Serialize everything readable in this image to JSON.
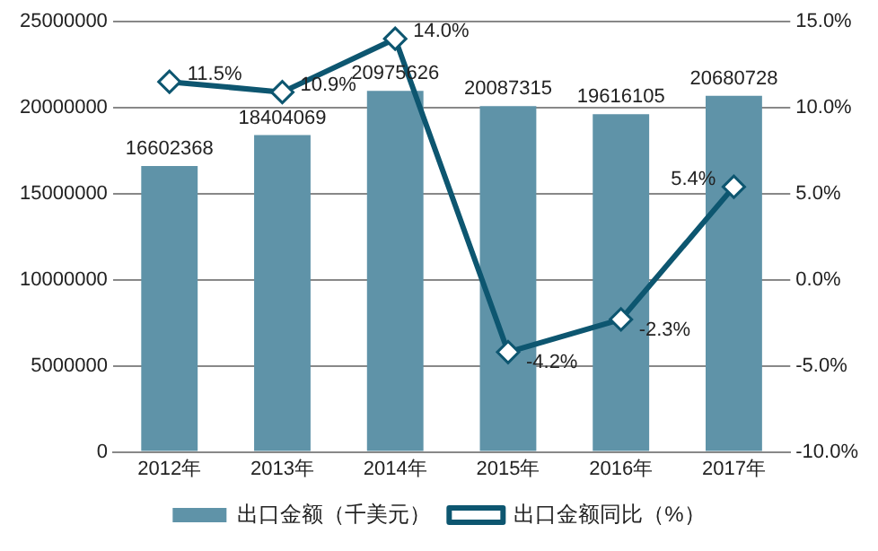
{
  "chart_data": {
    "type": "bar",
    "categories": [
      "2012年",
      "2013年",
      "2014年",
      "2015年",
      "2016年",
      "2017年"
    ],
    "series": [
      {
        "name": "出口金额（千美元）",
        "color": "#5f93a8",
        "values": [
          16602368,
          18404069,
          20975626,
          20087315,
          19616105,
          20680728
        ],
        "value_labels": [
          "16602368",
          "18404069",
          "20975626",
          "20087315",
          "19616105",
          "20680728"
        ]
      },
      {
        "name": "出口金额同比（%）",
        "type": "line",
        "axis": "y2",
        "color": "#0d5670",
        "marker": "diamond",
        "values": [
          11.5,
          10.9,
          14.0,
          -4.2,
          -2.3,
          5.4
        ],
        "value_labels": [
          "11.5%",
          "10.9%",
          "14.0%",
          "-4.2%",
          "-2.3%",
          "5.4%"
        ]
      }
    ],
    "ylim": [
      0,
      25000000
    ],
    "yticks": [
      0,
      5000000,
      10000000,
      15000000,
      20000000,
      25000000
    ],
    "y2lim": [
      -10,
      15
    ],
    "y2ticks": [
      {
        "value": -10,
        "label": "-10.0%"
      },
      {
        "value": -5,
        "label": "-5.0%"
      },
      {
        "value": 0,
        "label": "0.0%"
      },
      {
        "value": 5,
        "label": "5.0%"
      },
      {
        "value": 10,
        "label": "10.0%"
      },
      {
        "value": 15,
        "label": "15.0%"
      }
    ],
    "grid": "y",
    "legend": "bottom"
  }
}
